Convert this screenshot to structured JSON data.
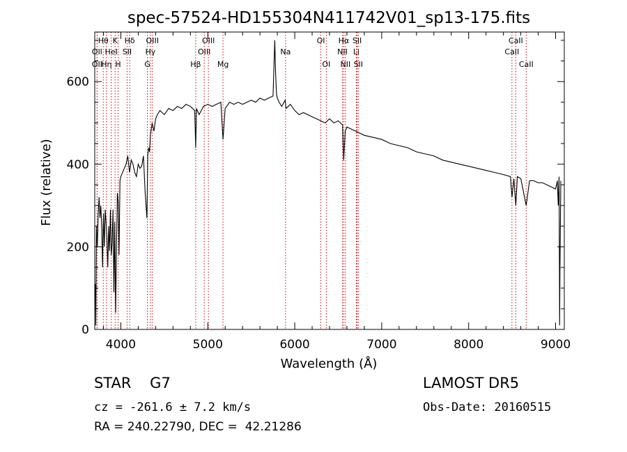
{
  "chart_data": {
    "type": "line",
    "title": "spec-57524-HD155304N411742V01_sp13-175.fits",
    "xlabel": "Wavelength (Å)",
    "ylabel": "Flux (relative)",
    "xlim": [
      3700,
      9100
    ],
    "ylim": [
      0,
      720
    ],
    "x_ticks": [
      4000,
      5000,
      6000,
      7000,
      8000,
      9000
    ],
    "x_tick_labels": [
      "4000",
      "5000",
      "6000",
      "7000",
      "8000",
      "9000"
    ],
    "y_ticks": [
      0,
      200,
      400,
      600
    ],
    "y_tick_labels": [
      "0",
      "200",
      "400",
      "600"
    ],
    "grid": false,
    "spectrum": {
      "x": [
        3700,
        3708,
        3712,
        3720,
        3730,
        3740,
        3750,
        3760,
        3770,
        3780,
        3790,
        3800,
        3810,
        3820,
        3830,
        3840,
        3850,
        3860,
        3870,
        3880,
        3890,
        3900,
        3910,
        3920,
        3930,
        3940,
        3950,
        3960,
        3970,
        3980,
        3990,
        4000,
        4020,
        4040,
        4060,
        4080,
        4100,
        4120,
        4140,
        4160,
        4180,
        4200,
        4220,
        4240,
        4260,
        4280,
        4300,
        4310,
        4320,
        4330,
        4340,
        4360,
        4380,
        4400,
        4420,
        4450,
        4500,
        4550,
        4600,
        4650,
        4700,
        4750,
        4800,
        4850,
        4861,
        4870,
        4900,
        4950,
        5000,
        5050,
        5100,
        5150,
        5175,
        5200,
        5250,
        5300,
        5350,
        5400,
        5450,
        5500,
        5550,
        5600,
        5650,
        5700,
        5750,
        5770,
        5780,
        5790,
        5800,
        5820,
        5850,
        5890,
        5900,
        5950,
        6000,
        6050,
        6100,
        6150,
        6200,
        6250,
        6300,
        6350,
        6400,
        6450,
        6500,
        6550,
        6563,
        6580,
        6600,
        6650,
        6700,
        6750,
        6800,
        6900,
        7000,
        7100,
        7200,
        7300,
        7400,
        7500,
        7600,
        7700,
        7800,
        7900,
        8000,
        8100,
        8200,
        8300,
        8400,
        8480,
        8498,
        8520,
        8542,
        8560,
        8600,
        8662,
        8700,
        8750,
        8800,
        8850,
        8900,
        8950,
        9000,
        9020,
        9030,
        9040,
        9046,
        9050,
        9060
      ],
      "y": [
        100,
        110,
        10,
        250,
        200,
        280,
        320,
        270,
        300,
        250,
        150,
        280,
        200,
        290,
        260,
        220,
        150,
        250,
        190,
        290,
        180,
        210,
        290,
        90,
        260,
        40,
        200,
        330,
        310,
        180,
        360,
        370,
        380,
        390,
        400,
        420,
        380,
        410,
        400,
        380,
        370,
        400,
        390,
        395,
        420,
        330,
        270,
        420,
        440,
        430,
        470,
        500,
        480,
        510,
        520,
        530,
        520,
        535,
        530,
        540,
        535,
        545,
        540,
        530,
        440,
        535,
        520,
        540,
        545,
        540,
        545,
        550,
        460,
        535,
        550,
        545,
        550,
        545,
        550,
        555,
        550,
        560,
        555,
        560,
        565,
        700,
        620,
        570,
        560,
        550,
        540,
        555,
        535,
        545,
        530,
        520,
        525,
        520,
        515,
        510,
        505,
        500,
        510,
        500,
        505,
        495,
        410,
        480,
        490,
        485,
        480,
        475,
        470,
        465,
        460,
        450,
        445,
        440,
        430,
        425,
        420,
        410,
        405,
        400,
        395,
        390,
        385,
        380,
        375,
        370,
        320,
        365,
        300,
        370,
        365,
        300,
        360,
        360,
        355,
        355,
        350,
        345,
        340,
        360,
        300,
        370,
        10,
        150,
        360
      ]
    },
    "spectral_lines": [
      {
        "label": "Hθ",
        "x": 3798,
        "row": 1
      },
      {
        "label": "OII",
        "x": 3727,
        "row": 2
      },
      {
        "label": "OII",
        "x": 3727,
        "row": 3
      },
      {
        "label": "Hη",
        "x": 3835,
        "row": 3
      },
      {
        "label": "HeI",
        "x": 3889,
        "row": 2
      },
      {
        "label": "K",
        "x": 3934,
        "row": 1
      },
      {
        "label": "H",
        "x": 3969,
        "row": 3
      },
      {
        "label": "Hδ",
        "x": 4102,
        "row": 1
      },
      {
        "label": "SII",
        "x": 4072,
        "row": 2
      },
      {
        "label": "OIII",
        "x": 4363,
        "row": 1
      },
      {
        "label": "Hγ",
        "x": 4340,
        "row": 2
      },
      {
        "label": "G",
        "x": 4305,
        "row": 3
      },
      {
        "label": "Hβ",
        "x": 4861,
        "row": 3
      },
      {
        "label": "OIII",
        "x": 5007,
        "row": 1
      },
      {
        "label": "OIII",
        "x": 4959,
        "row": 2
      },
      {
        "label": "Mg",
        "x": 5175,
        "row": 3
      },
      {
        "label": "Na",
        "x": 5894,
        "row": 2
      },
      {
        "label": "OI",
        "x": 6300,
        "row": 1
      },
      {
        "label": "OI",
        "x": 6363,
        "row": 3
      },
      {
        "label": "Hα",
        "x": 6563,
        "row": 1
      },
      {
        "label": "NII",
        "x": 6548,
        "row": 2
      },
      {
        "label": "NII",
        "x": 6583,
        "row": 3
      },
      {
        "label": "SII",
        "x": 6717,
        "row": 1
      },
      {
        "label": "Li",
        "x": 6708,
        "row": 2
      },
      {
        "label": "SII",
        "x": 6731,
        "row": 3
      },
      {
        "label": "CaII",
        "x": 8542,
        "row": 1
      },
      {
        "label": "CaII",
        "x": 8498,
        "row": 2
      },
      {
        "label": "CaII",
        "x": 8662,
        "row": 3
      }
    ]
  },
  "info": {
    "object": "STAR    G7",
    "cz": "cz = -261.6 ± 7.2 km/s",
    "radec": "RA = 240.22790, DEC =  42.21286",
    "survey": "LAMOST DR5",
    "obs_date": "Obs-Date: 20160515"
  },
  "colors": {
    "spectrum": "#000000",
    "line_markers": "#cc0000",
    "axes": "#000000",
    "background": "#ffffff"
  }
}
